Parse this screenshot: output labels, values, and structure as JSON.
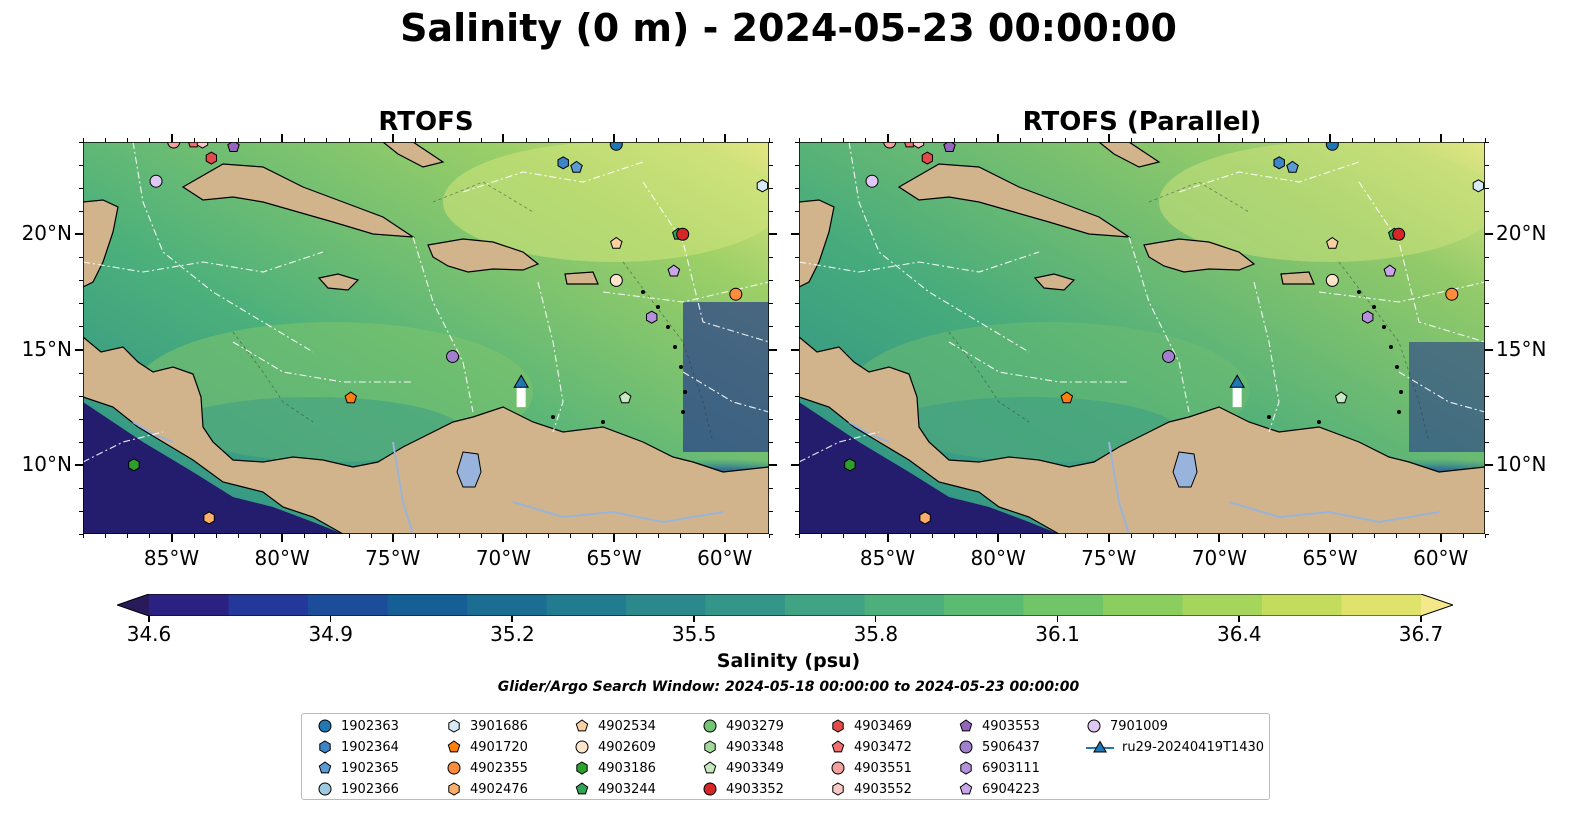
{
  "title": "Salinity (0 m) - 2024-05-23 00:00:00",
  "panels": [
    {
      "title": "RTOFS"
    },
    {
      "title": "RTOFS (Parallel)"
    }
  ],
  "axes": {
    "lon_labels": [
      "85°W",
      "80°W",
      "75°W",
      "70°W",
      "65°W",
      "60°W"
    ],
    "lon_values": [
      -85,
      -80,
      -75,
      -70,
      -65,
      -60
    ],
    "lat_labels": [
      "20°N",
      "15°N",
      "10°N"
    ],
    "lat_values": [
      20,
      15,
      10
    ],
    "lon_range": [
      -89,
      -58
    ],
    "lat_range": [
      7,
      24
    ]
  },
  "colorbar": {
    "label": "Salinity (psu)",
    "ticks": [
      "34.6",
      "34.9",
      "35.2",
      "35.5",
      "35.8",
      "36.1",
      "36.4",
      "36.7"
    ],
    "range": [
      34.6,
      36.7
    ],
    "extend": "both",
    "colormap": "haline"
  },
  "search_window": "Glider/Argo Search Window: 2024-05-18 00:00:00 to 2024-05-23 00:00:00",
  "colors": {
    "land": "#d2b48c",
    "lake": "#98b4dd",
    "river": "#9ab4d8"
  },
  "legend": [
    {
      "label": "1902363",
      "marker": "circle",
      "color": "#1f77b4"
    },
    {
      "label": "1902364",
      "marker": "hexagon",
      "color": "#3d85c6"
    },
    {
      "label": "1902365",
      "marker": "pentagon",
      "color": "#5a9bd5"
    },
    {
      "label": "1902366",
      "marker": "circle",
      "color": "#9ecae1"
    },
    {
      "label": "3901686",
      "marker": "hexagon",
      "color": "#d6eaf8"
    },
    {
      "label": "4901720",
      "marker": "pentagon",
      "color": "#ff7f0e"
    },
    {
      "label": "4902355",
      "marker": "circle",
      "color": "#fd8d3c"
    },
    {
      "label": "4902476",
      "marker": "hexagon",
      "color": "#fdae6b"
    },
    {
      "label": "4902534",
      "marker": "pentagon",
      "color": "#fdd0a2"
    },
    {
      "label": "4902609",
      "marker": "circle",
      "color": "#fde5cc"
    },
    {
      "label": "4903186",
      "marker": "hexagon",
      "color": "#2ca02c"
    },
    {
      "label": "4903244",
      "marker": "pentagon",
      "color": "#31a354"
    },
    {
      "label": "4903279",
      "marker": "circle",
      "color": "#74c476"
    },
    {
      "label": "4903348",
      "marker": "hexagon",
      "color": "#a1d99b"
    },
    {
      "label": "4903349",
      "marker": "pentagon",
      "color": "#c7e9c0"
    },
    {
      "label": "4903352",
      "marker": "circle",
      "color": "#d62728"
    },
    {
      "label": "4903469",
      "marker": "hexagon",
      "color": "#e34a4a"
    },
    {
      "label": "4903472",
      "marker": "pentagon",
      "color": "#f07070"
    },
    {
      "label": "4903551",
      "marker": "circle",
      "color": "#f4a09c"
    },
    {
      "label": "4903552",
      "marker": "hexagon",
      "color": "#f9c9c6"
    },
    {
      "label": "4903553",
      "marker": "pentagon",
      "color": "#9467bd"
    },
    {
      "label": "5906437",
      "marker": "circle",
      "color": "#a27fcc"
    },
    {
      "label": "6903111",
      "marker": "hexagon",
      "color": "#b590dd"
    },
    {
      "label": "6904223",
      "marker": "pentagon",
      "color": "#c9a6ea"
    },
    {
      "label": "7901009",
      "marker": "circle",
      "color": "#e0c8f5"
    },
    {
      "label": "ru29-20240419T1430",
      "marker": "triangle-line",
      "color": "#1f77b4"
    }
  ],
  "floats": [
    {
      "id": "1902363",
      "lon": -64.9,
      "lat": 23.9
    },
    {
      "id": "1902364",
      "lon": -67.3,
      "lat": 23.1
    },
    {
      "id": "1902365",
      "lon": -66.7,
      "lat": 22.9
    },
    {
      "id": "3901686",
      "lon": -58.3,
      "lat": 22.1
    },
    {
      "id": "4901720",
      "lon": -76.9,
      "lat": 12.9
    },
    {
      "id": "4902355",
      "lon": -59.5,
      "lat": 17.4
    },
    {
      "id": "4902476",
      "lon": -83.3,
      "lat": 7.7
    },
    {
      "id": "4902534",
      "lon": -64.9,
      "lat": 19.6
    },
    {
      "id": "4902609",
      "lon": -64.9,
      "lat": 18.0
    },
    {
      "id": "4903186",
      "lon": -86.7,
      "lat": 10.0
    },
    {
      "id": "4903244",
      "lon": -62.1,
      "lat": 20.0
    },
    {
      "id": "4903349",
      "lon": -64.5,
      "lat": 12.9
    },
    {
      "id": "4903352",
      "lon": -61.9,
      "lat": 20.0
    },
    {
      "id": "4903469",
      "lon": -83.2,
      "lat": 23.3
    },
    {
      "id": "4903472",
      "lon": -84.0,
      "lat": 24.0
    },
    {
      "id": "4903551",
      "lon": -84.9,
      "lat": 24.0
    },
    {
      "id": "4903552",
      "lon": -83.6,
      "lat": 24.0
    },
    {
      "id": "4903553",
      "lon": -82.2,
      "lat": 23.8
    },
    {
      "id": "5906437",
      "lon": -72.3,
      "lat": 14.7
    },
    {
      "id": "6903111",
      "lon": -63.3,
      "lat": 16.4
    },
    {
      "id": "6904223",
      "lon": -62.3,
      "lat": 18.4
    },
    {
      "id": "7901009",
      "lon": -85.7,
      "lat": 22.3
    }
  ],
  "glider": {
    "id": "ru29-20240419T1430",
    "track": [
      [
        -69.2,
        12.5
      ],
      [
        -69.2,
        13.6
      ]
    ]
  }
}
